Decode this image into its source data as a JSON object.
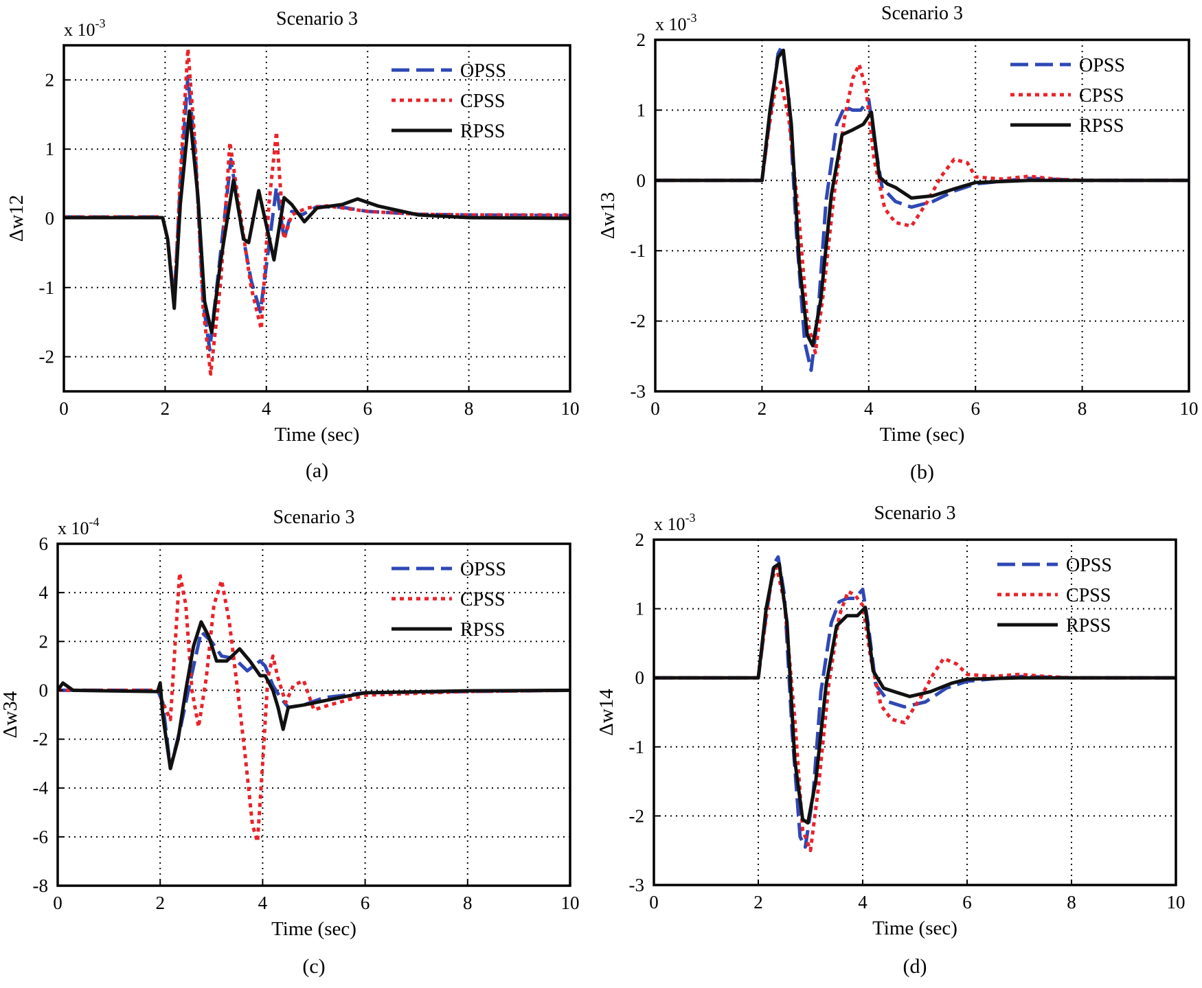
{
  "colors": {
    "OPSS": "#2f48b5",
    "CPSS": "#e8232a",
    "RPSS": "#111111"
  },
  "chart_data": [
    {
      "id": "a",
      "type": "line",
      "title": "Scenario 3",
      "xlabel": "Time (sec)",
      "ylabel": "Δw12",
      "exponent_label": "x 10",
      "exponent": "-3",
      "caption": "(a)",
      "xlim": [
        0,
        10
      ],
      "ylim": [
        -2.5,
        2.5
      ],
      "xticks": [
        0,
        2,
        4,
        6,
        8,
        10
      ],
      "yticks": [
        -2,
        -1,
        0,
        1,
        2
      ],
      "grid": true,
      "legend_position": "top-right",
      "series": [
        {
          "name": "OPSS",
          "style": "dashed",
          "x": [
            0,
            1.95,
            2.05,
            2.18,
            2.3,
            2.45,
            2.6,
            2.75,
            2.88,
            3.05,
            3.3,
            3.5,
            3.7,
            3.88,
            4.05,
            4.2,
            4.35,
            4.5,
            4.7,
            5.0,
            5.5,
            6.0,
            7.0,
            8.0,
            10.0
          ],
          "y": [
            0.02,
            0.02,
            -0.3,
            -1.2,
            0.5,
            2.05,
            0.9,
            -1.2,
            -1.9,
            -0.8,
            0.85,
            -0.1,
            -0.9,
            -1.35,
            -0.4,
            0.45,
            -0.3,
            0.1,
            0.05,
            0.17,
            0.16,
            0.1,
            0.06,
            0.05,
            0.04
          ]
        },
        {
          "name": "CPSS",
          "style": "dotted",
          "x": [
            0,
            1.95,
            2.05,
            2.18,
            2.3,
            2.45,
            2.6,
            2.75,
            2.9,
            3.1,
            3.28,
            3.5,
            3.7,
            3.9,
            4.05,
            4.2,
            4.35,
            4.5,
            4.8,
            5.2,
            6.0,
            7.0,
            8.0,
            10.0
          ],
          "y": [
            0.02,
            0.02,
            -0.3,
            -1.25,
            0.6,
            2.45,
            1.0,
            -1.3,
            -2.25,
            -0.9,
            1.1,
            0.0,
            -1.0,
            -1.6,
            0.2,
            1.25,
            -0.3,
            0.05,
            0.15,
            0.18,
            0.1,
            0.06,
            0.05,
            0.05
          ]
        },
        {
          "name": "RPSS",
          "style": "solid",
          "x": [
            0,
            1.95,
            2.05,
            2.18,
            2.3,
            2.48,
            2.65,
            2.78,
            2.92,
            3.1,
            3.35,
            3.55,
            3.65,
            3.85,
            4.0,
            4.15,
            4.35,
            4.5,
            4.75,
            5.0,
            5.5,
            5.8,
            6.2,
            7.0,
            8.0,
            10.0
          ],
          "y": [
            0.01,
            0.01,
            -0.3,
            -1.3,
            0.2,
            1.55,
            0.3,
            -1.2,
            -1.65,
            -0.6,
            0.55,
            -0.3,
            -0.35,
            0.4,
            -0.1,
            -0.6,
            0.3,
            0.2,
            -0.05,
            0.15,
            0.2,
            0.28,
            0.18,
            0.05,
            0.01,
            0.0
          ]
        }
      ]
    },
    {
      "id": "b",
      "type": "line",
      "title": "Scenario 3",
      "xlabel": "Time (sec)",
      "ylabel": "Δw13",
      "exponent_label": "x 10",
      "exponent": "-3",
      "caption": "(b)",
      "xlim": [
        0,
        10
      ],
      "ylim": [
        -3,
        2
      ],
      "xticks": [
        0,
        2,
        4,
        6,
        8,
        10
      ],
      "yticks": [
        -3,
        -2,
        -1,
        0,
        1,
        2
      ],
      "grid": true,
      "legend_position": "top-right",
      "series": [
        {
          "name": "OPSS",
          "style": "dashed",
          "x": [
            0,
            2.0,
            2.15,
            2.3,
            2.38,
            2.5,
            2.65,
            2.8,
            2.92,
            3.05,
            3.2,
            3.4,
            3.55,
            3.7,
            3.85,
            4.0,
            4.1,
            4.25,
            4.5,
            4.8,
            5.2,
            5.6,
            6.0,
            7.0,
            8.0,
            10.0
          ],
          "y": [
            0,
            0,
            0.9,
            1.8,
            1.92,
            1.2,
            -0.8,
            -2.3,
            -2.7,
            -1.9,
            -0.3,
            0.8,
            1.05,
            1.0,
            1.0,
            1.15,
            0.6,
            -0.1,
            -0.3,
            -0.38,
            -0.3,
            -0.15,
            -0.05,
            0.03,
            0.0,
            0.0
          ]
        },
        {
          "name": "CPSS",
          "style": "dotted",
          "x": [
            0,
            2.0,
            2.12,
            2.25,
            2.35,
            2.5,
            2.7,
            2.85,
            3.0,
            3.15,
            3.35,
            3.55,
            3.7,
            3.82,
            3.95,
            4.1,
            4.3,
            4.5,
            4.8,
            5.1,
            5.35,
            5.6,
            5.85,
            6.0,
            6.5,
            7.0,
            7.5,
            8.0,
            10.0
          ],
          "y": [
            0,
            0,
            0.7,
            1.3,
            1.4,
            0.9,
            -0.6,
            -2.0,
            -2.45,
            -1.6,
            -0.2,
            0.9,
            1.45,
            1.65,
            1.3,
            0.3,
            -0.4,
            -0.6,
            -0.65,
            -0.3,
            0.05,
            0.3,
            0.25,
            0.05,
            0.02,
            0.06,
            0.02,
            0.0,
            0.0
          ]
        },
        {
          "name": "RPSS",
          "style": "solid",
          "x": [
            0,
            2.0,
            2.15,
            2.3,
            2.4,
            2.55,
            2.7,
            2.85,
            2.95,
            3.1,
            3.3,
            3.5,
            3.7,
            3.9,
            4.05,
            4.2,
            4.35,
            4.5,
            4.8,
            5.2,
            5.6,
            6.0,
            7.0,
            8.0,
            10.0
          ],
          "y": [
            0,
            0,
            1.0,
            1.75,
            1.85,
            0.8,
            -1.2,
            -2.2,
            -2.35,
            -1.7,
            -0.2,
            0.65,
            0.72,
            0.8,
            0.97,
            0.05,
            -0.05,
            -0.1,
            -0.25,
            -0.22,
            -0.12,
            -0.03,
            0.0,
            0.0,
            0.0
          ]
        }
      ]
    },
    {
      "id": "c",
      "type": "line",
      "title": "Scenario 3",
      "xlabel": "Time (sec)",
      "ylabel": "Δw34",
      "exponent_label": "x 10",
      "exponent": "-4",
      "caption": "(c)",
      "xlim": [
        0,
        10
      ],
      "ylim": [
        -8,
        6
      ],
      "xticks": [
        0,
        2,
        4,
        6,
        8,
        10
      ],
      "yticks": [
        -8,
        -6,
        -4,
        -2,
        0,
        2,
        4,
        6
      ],
      "grid": true,
      "legend_position": "top-right",
      "series": [
        {
          "name": "OPSS",
          "style": "dashed",
          "x": [
            0,
            1.95,
            2.05,
            2.2,
            2.4,
            2.6,
            2.8,
            3.0,
            3.2,
            3.45,
            3.7,
            3.95,
            4.05,
            4.2,
            4.35,
            4.5,
            4.8,
            5.2,
            6.0,
            8.0,
            10.0
          ],
          "y": [
            0,
            0,
            -0.5,
            -3.2,
            -1.5,
            0.5,
            2.4,
            2.0,
            1.4,
            1.3,
            0.8,
            1.2,
            1.0,
            0.2,
            -0.3,
            -0.7,
            -0.6,
            -0.3,
            -0.1,
            -0.05,
            0.0
          ]
        },
        {
          "name": "CPSS",
          "style": "dotted",
          "x": [
            0,
            1.95,
            2.05,
            2.2,
            2.38,
            2.5,
            2.62,
            2.75,
            2.9,
            3.05,
            3.2,
            3.35,
            3.5,
            3.65,
            3.8,
            3.9,
            4.0,
            4.1,
            4.2,
            4.3,
            4.45,
            4.6,
            4.8,
            5.0,
            5.3,
            6.0,
            8.0,
            10.0
          ],
          "y": [
            0,
            0,
            -0.5,
            -1.2,
            4.8,
            3.5,
            0.0,
            -1.5,
            0.5,
            3.5,
            4.5,
            2.8,
            0.2,
            -2.5,
            -5.5,
            -6.2,
            -3.0,
            0.5,
            1.4,
            0.5,
            -0.5,
            0.2,
            0.4,
            -0.8,
            -0.6,
            -0.2,
            -0.05,
            0.0
          ]
        },
        {
          "name": "RPSS",
          "style": "solid",
          "x": [
            0,
            0.1,
            0.3,
            1.95,
            2.0,
            2.05,
            2.2,
            2.35,
            2.5,
            2.65,
            2.8,
            2.95,
            3.1,
            3.3,
            3.55,
            3.75,
            3.95,
            4.05,
            4.2,
            4.3,
            4.4,
            4.5,
            4.8,
            5.5,
            6.0,
            8.0,
            10.0
          ],
          "y": [
            0,
            0.3,
            0.0,
            -0.05,
            0.3,
            -1.0,
            -3.2,
            -2.0,
            0.0,
            1.8,
            2.8,
            2.2,
            1.2,
            1.2,
            1.7,
            1.2,
            0.6,
            0.6,
            0.0,
            -0.7,
            -1.6,
            -0.7,
            -0.6,
            -0.3,
            -0.1,
            -0.02,
            0.0
          ]
        }
      ]
    },
    {
      "id": "d",
      "type": "line",
      "title": "Scenario 3",
      "xlabel": "Time (sec)",
      "ylabel": "Δw14",
      "exponent_label": "x 10",
      "exponent": "-3",
      "caption": "(d)",
      "xlim": [
        0,
        10
      ],
      "ylim": [
        -3,
        2
      ],
      "xticks": [
        0,
        2,
        4,
        6,
        8,
        10
      ],
      "yticks": [
        -3,
        -2,
        -1,
        0,
        1,
        2
      ],
      "grid": true,
      "legend_position": "top-right",
      "series": [
        {
          "name": "OPSS",
          "style": "dashed",
          "x": [
            0,
            2.0,
            2.15,
            2.3,
            2.38,
            2.5,
            2.65,
            2.8,
            2.9,
            3.05,
            3.2,
            3.4,
            3.55,
            3.7,
            3.85,
            4.0,
            4.1,
            4.25,
            4.5,
            4.8,
            5.2,
            5.6,
            6.0,
            7.0,
            8.0,
            10.0
          ],
          "y": [
            0,
            0,
            0.9,
            1.65,
            1.75,
            1.2,
            -0.8,
            -2.3,
            -2.45,
            -1.7,
            -0.2,
            0.8,
            1.1,
            1.15,
            1.15,
            1.28,
            0.8,
            -0.1,
            -0.35,
            -0.42,
            -0.35,
            -0.15,
            -0.05,
            0.02,
            0.0,
            0.0
          ]
        },
        {
          "name": "CPSS",
          "style": "dotted",
          "x": [
            0,
            2.0,
            2.12,
            2.25,
            2.35,
            2.5,
            2.7,
            2.85,
            3.0,
            3.15,
            3.35,
            3.55,
            3.72,
            3.85,
            4.0,
            4.15,
            4.35,
            4.55,
            4.8,
            5.1,
            5.35,
            5.55,
            5.8,
            6.0,
            6.5,
            7.0,
            7.5,
            8.0,
            10.0
          ],
          "y": [
            0,
            0,
            0.7,
            1.4,
            1.6,
            1.1,
            -0.6,
            -2.2,
            -2.5,
            -1.6,
            -0.1,
            0.9,
            1.25,
            1.2,
            1.05,
            0.3,
            -0.4,
            -0.6,
            -0.65,
            -0.3,
            0.05,
            0.28,
            0.2,
            0.05,
            0.02,
            0.05,
            0.02,
            0.0,
            0.0
          ]
        },
        {
          "name": "RPSS",
          "style": "solid",
          "x": [
            0,
            2.0,
            2.15,
            2.3,
            2.4,
            2.55,
            2.7,
            2.85,
            2.95,
            3.1,
            3.3,
            3.5,
            3.7,
            3.9,
            4.05,
            4.2,
            4.4,
            4.6,
            4.9,
            5.3,
            5.7,
            6.0,
            7.0,
            8.0,
            10.0
          ],
          "y": [
            0,
            0,
            1.0,
            1.6,
            1.65,
            0.8,
            -1.2,
            -2.05,
            -2.1,
            -1.5,
            -0.1,
            0.75,
            0.9,
            0.9,
            1.02,
            0.1,
            -0.15,
            -0.2,
            -0.27,
            -0.2,
            -0.08,
            -0.02,
            0.0,
            0.0,
            0.0
          ]
        }
      ]
    }
  ]
}
